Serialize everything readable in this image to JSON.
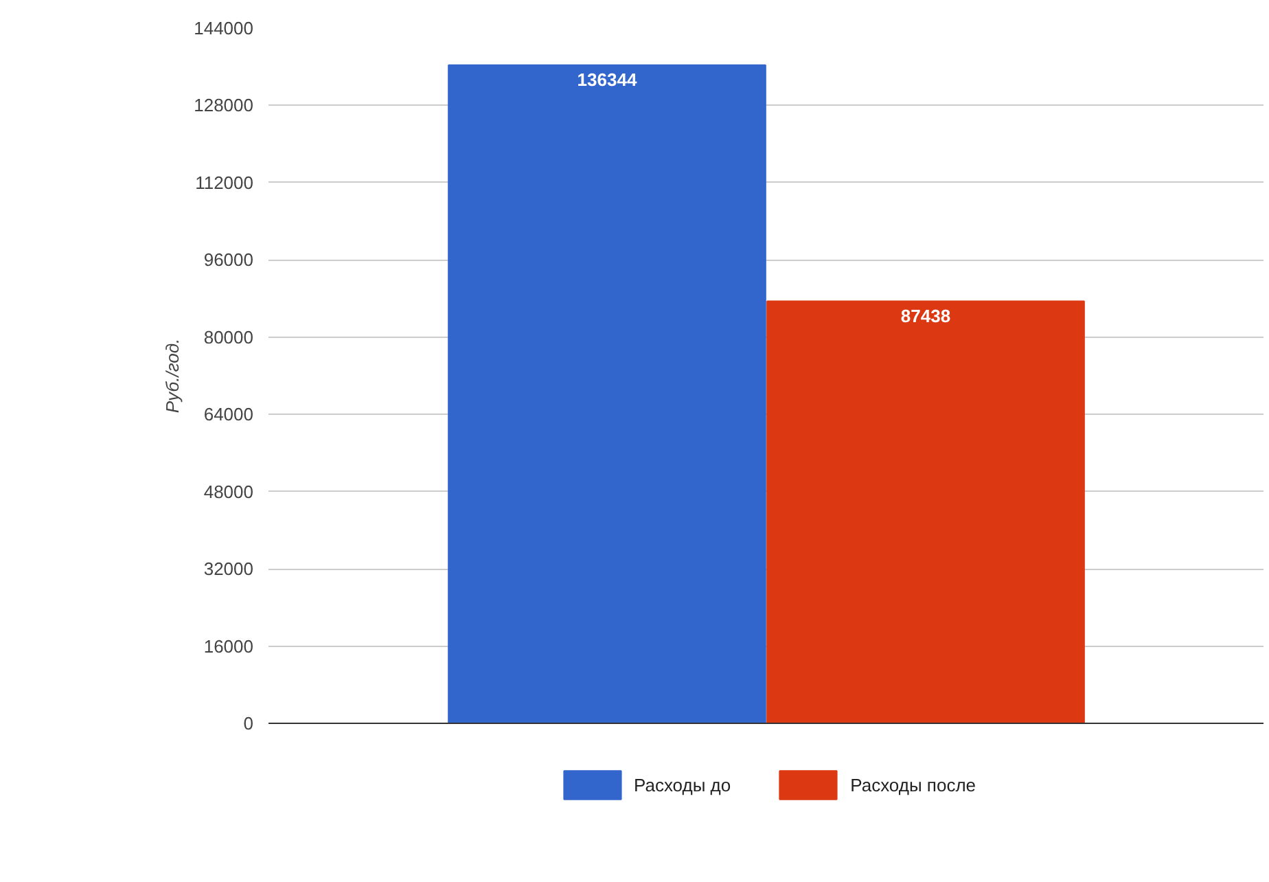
{
  "chart_data": {
    "type": "bar",
    "ylabel": "Руб./год.",
    "categories": [
      null
    ],
    "series": [
      {
        "name": "Расходы до",
        "color": "#3366cc",
        "values": [
          136344
        ]
      },
      {
        "name": "Расходы после",
        "color": "#dc3912",
        "values": [
          87438
        ]
      }
    ],
    "ylim": [
      0,
      144000
    ],
    "yticks": [
      0,
      16000,
      32000,
      48000,
      64000,
      80000,
      96000,
      112000,
      128000,
      144000
    ],
    "grid": "y",
    "legend": "bottom",
    "tick_labels": "y",
    "data_labels": true
  }
}
